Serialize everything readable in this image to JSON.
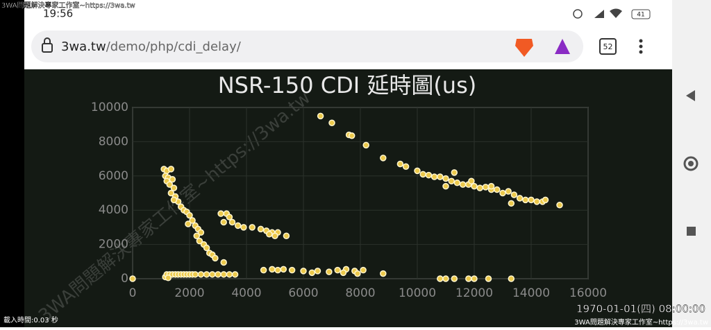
{
  "status_bar": {
    "time": "19:56",
    "battery": "41"
  },
  "browser": {
    "url_host": "3wa.tw",
    "url_path": "/demo/php/cdi_delay/",
    "tab_count": "52"
  },
  "watermark": "3WA問題解決專家工作室~https://3wa.tw",
  "footer": {
    "load_time": "載入時間:0.03 秒",
    "clock": "1970-01-01(四) 08:00:00"
  },
  "chart_data": {
    "type": "scatter",
    "title": "NSR-150 CDI 延時圖(us)",
    "x": [
      1100,
      1200,
      1350,
      1150,
      1250,
      1400,
      1200,
      1300,
      1450,
      1350,
      1500,
      1600,
      1450,
      1700,
      1800,
      1900,
      2000,
      2100,
      1950,
      2200,
      2300,
      2400,
      2250,
      2350,
      2500,
      2600,
      2700,
      2800,
      2900,
      3200,
      3100,
      3300,
      3400,
      3200,
      3500,
      3700,
      3900,
      4200,
      4500,
      4700,
      4900,
      5100,
      5000,
      5400,
      4800,
      6600,
      7000,
      7600,
      7700,
      8200,
      8800,
      9400,
      9600,
      10000,
      10200,
      10400,
      10600,
      10800,
      11000,
      11200,
      11300,
      11400,
      11600,
      11800,
      11900,
      12000,
      12200,
      12400,
      12600,
      12800,
      13000,
      13200,
      13400,
      13600,
      13800,
      14000,
      14200,
      14400,
      14500,
      15000,
      13300,
      11000,
      12600,
      1150,
      1200,
      1300,
      1400,
      1500,
      1600,
      1700,
      1800,
      1900,
      2000,
      2100,
      2200,
      2400,
      2600,
      2800,
      3000,
      3200,
      3400,
      3600,
      1250,
      4600,
      4900,
      5100,
      5300,
      5600,
      6000,
      6500,
      6900,
      7200,
      7500,
      7800,
      8100,
      8800,
      6300,
      7400,
      7900,
      0,
      10800,
      11000,
      11300,
      11800,
      12000,
      12500,
      13300
    ],
    "values": [
      6400,
      6300,
      6400,
      6000,
      5900,
      5800,
      5700,
      5500,
      5300,
      5000,
      4800,
      4500,
      4600,
      4200,
      4000,
      3900,
      3700,
      3400,
      3200,
      3100,
      2900,
      2700,
      2500,
      2200,
      2000,
      1800,
      1500,
      1400,
      1200,
      950,
      3800,
      3800,
      3600,
      3300,
      3300,
      3100,
      3000,
      3000,
      2900,
      2800,
      2700,
      2700,
      2500,
      2500,
      2600,
      9500,
      9100,
      8400,
      8350,
      7800,
      7050,
      6700,
      6550,
      6300,
      6100,
      6050,
      5950,
      5950,
      5850,
      5700,
      6200,
      5600,
      5500,
      5500,
      5700,
      5400,
      5300,
      5350,
      5200,
      5200,
      5000,
      5100,
      4900,
      4700,
      4600,
      4600,
      4500,
      4500,
      4600,
      4300,
      4400,
      5400,
      5400,
      100,
      250,
      250,
      250,
      250,
      250,
      250,
      250,
      250,
      250,
      250,
      250,
      250,
      250,
      250,
      250,
      250,
      250,
      250,
      50,
      500,
      550,
      500,
      550,
      500,
      450,
      450,
      400,
      500,
      550,
      450,
      500,
      300,
      350,
      350,
      300,
      0,
      0,
      0,
      0,
      0,
      0,
      0,
      0
    ],
    "color": "#ecc94b",
    "xlim": [
      0,
      16000
    ],
    "xticks": [
      0,
      2000,
      4000,
      6000,
      8000,
      10000,
      12000,
      14000,
      16000
    ],
    "ylim": [
      0,
      10000
    ],
    "yticks": [
      0,
      2000,
      4000,
      6000,
      8000,
      10000
    ],
    "grid": true
  }
}
